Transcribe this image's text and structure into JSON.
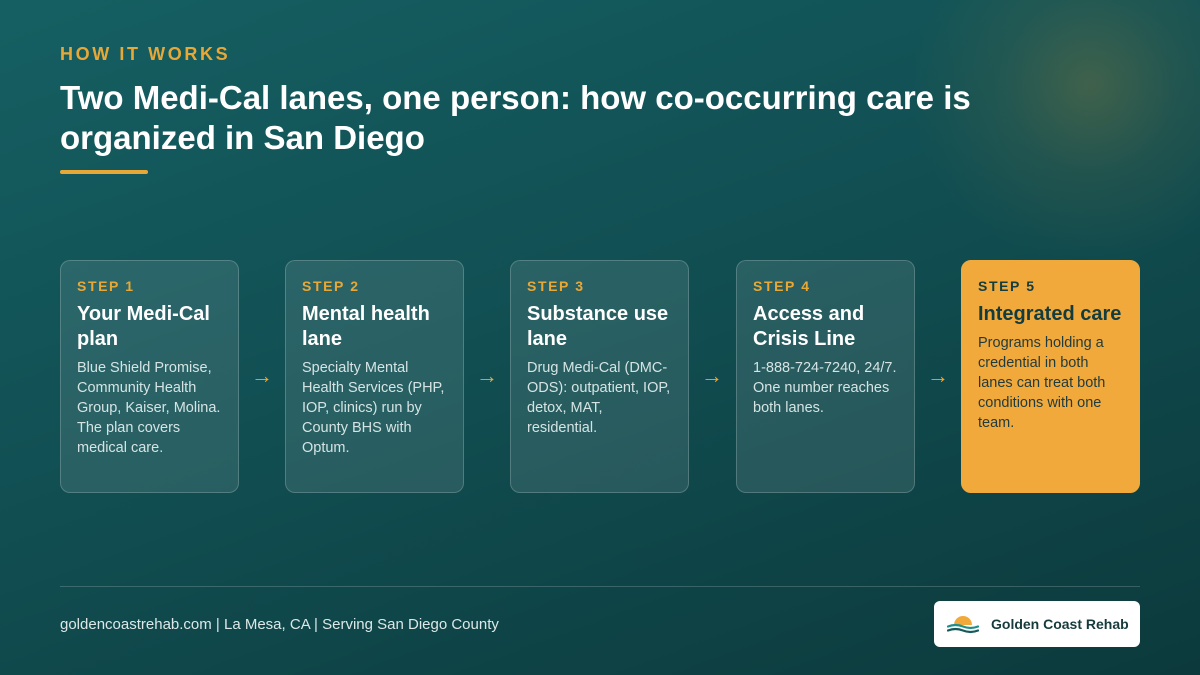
{
  "header": {
    "eyebrow": "HOW IT WORKS",
    "title": "Two Medi-Cal lanes, one person: how co-occurring care is organized in San Diego"
  },
  "steps": [
    {
      "label": "STEP 1",
      "title": "Your Medi-Cal plan",
      "description": "Blue Shield Promise, Community Health Group, Kaiser, Molina. The plan covers medical care."
    },
    {
      "label": "STEP 2",
      "title": "Mental health lane",
      "description": "Specialty Mental Health Services (PHP, IOP, clinics) run by County BHS with Optum."
    },
    {
      "label": "STEP 3",
      "title": "Substance use lane",
      "description": "Drug Medi-Cal (DMC-ODS): outpatient, IOP, detox, MAT, residential."
    },
    {
      "label": "STEP 4",
      "title": "Access and Crisis Line",
      "description": "1-888-724-7240, 24/7. One number reaches both lanes."
    },
    {
      "label": "STEP 5",
      "title": "Integrated care",
      "description": "Programs holding a credential in both lanes can treat both conditions with one team."
    }
  ],
  "arrow_glyph": "→",
  "footer": {
    "text": "goldencoastrehab.com | La Mesa, CA | Serving San Diego County",
    "logo_name": "Golden Coast Rehab"
  },
  "colors": {
    "accent": "#e8a838",
    "highlight_card": "#f2a93b",
    "background": "#114f53"
  }
}
